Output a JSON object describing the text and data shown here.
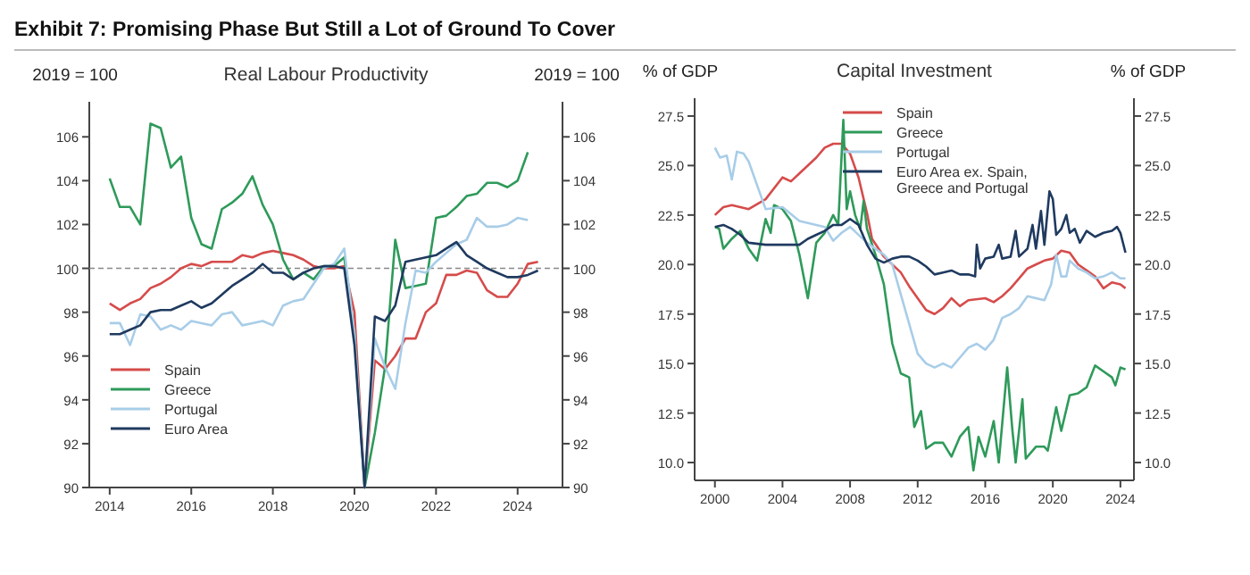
{
  "chart_data": [
    {
      "type": "line",
      "title": "Real Labour Productivity",
      "annotations": [
        "Exhibit 7: Promising Phase But Still a Lot of Ground To Cover"
      ],
      "ylabel": "2019 = 100",
      "y2label": "2019 = 100",
      "xlim": [
        2013.5,
        2025.1
      ],
      "xticks": [
        2014,
        2016,
        2018,
        2020,
        2022,
        2024
      ],
      "ylim": [
        90,
        107.6
      ],
      "yticks": [
        90,
        92,
        94,
        96,
        98,
        100,
        102,
        104,
        106
      ],
      "y2lim": [
        90,
        107.6
      ],
      "y2ticks": [
        90,
        92,
        94,
        96,
        98,
        100,
        102,
        104,
        106
      ],
      "legend": "bottom left",
      "line_style": "solid",
      "ref_lines": [
        {
          "axis": "y",
          "value": 100,
          "color": "#888888",
          "line_style": "dashed"
        }
      ],
      "series": [
        {
          "name": "Spain",
          "color": "#d64b4b",
          "x": [
            2014,
            2014.25,
            2014.5,
            2014.75,
            2015,
            2015.25,
            2015.5,
            2015.75,
            2016,
            2016.25,
            2016.5,
            2016.75,
            2017,
            2017.25,
            2017.5,
            2017.75,
            2018,
            2018.25,
            2018.5,
            2018.75,
            2019,
            2019.25,
            2019.5,
            2019.75,
            2020,
            2020.25,
            2020.5,
            2020.75,
            2021,
            2021.25,
            2021.5,
            2021.75,
            2022,
            2022.25,
            2022.5,
            2022.75,
            2023,
            2023.25,
            2023.5,
            2023.75,
            2024,
            2024.25,
            2024.5
          ],
          "values": [
            98.4,
            98.1,
            98.4,
            98.6,
            99.1,
            99.3,
            99.6,
            100.0,
            100.2,
            100.1,
            100.3,
            100.3,
            100.3,
            100.6,
            100.5,
            100.7,
            100.8,
            100.7,
            100.6,
            100.4,
            100.1,
            100.0,
            100.0,
            100.1,
            98.0,
            90.0,
            95.8,
            95.4,
            96.0,
            96.8,
            96.8,
            98.0,
            98.4,
            99.7,
            99.7,
            99.9,
            99.8,
            99.0,
            98.7,
            98.7,
            99.3,
            100.2,
            100.3
          ]
        },
        {
          "name": "Greece",
          "color": "#2e9a5a",
          "x": [
            2014,
            2014.25,
            2014.5,
            2014.75,
            2015,
            2015.25,
            2015.5,
            2015.75,
            2016,
            2016.25,
            2016.5,
            2016.75,
            2017,
            2017.25,
            2017.5,
            2017.75,
            2018,
            2018.25,
            2018.5,
            2018.75,
            2019,
            2019.25,
            2019.5,
            2019.75,
            2020,
            2020.25,
            2020.5,
            2020.75,
            2021,
            2021.25,
            2021.5,
            2021.75,
            2022,
            2022.25,
            2022.5,
            2022.75,
            2023,
            2023.25,
            2023.5,
            2023.75,
            2024,
            2024.25
          ],
          "values": [
            104.1,
            102.8,
            102.8,
            102.0,
            106.6,
            106.4,
            104.6,
            105.1,
            102.3,
            101.1,
            100.9,
            102.7,
            103.0,
            103.4,
            104.2,
            102.9,
            102.0,
            100.4,
            99.5,
            99.8,
            99.5,
            100.1,
            100.1,
            100.5,
            97.0,
            90.0,
            92.5,
            95.5,
            101.3,
            99.1,
            99.2,
            99.3,
            102.3,
            102.4,
            102.8,
            103.3,
            103.4,
            103.9,
            103.9,
            103.7,
            104.0,
            105.3
          ]
        },
        {
          "name": "Portugal",
          "color": "#a8cde8",
          "x": [
            2014,
            2014.25,
            2014.5,
            2014.75,
            2015,
            2015.25,
            2015.5,
            2015.75,
            2016,
            2016.25,
            2016.5,
            2016.75,
            2017,
            2017.25,
            2017.5,
            2017.75,
            2018,
            2018.25,
            2018.5,
            2018.75,
            2019,
            2019.25,
            2019.5,
            2019.75,
            2020,
            2020.25,
            2020.5,
            2020.75,
            2021,
            2021.25,
            2021.5,
            2021.75,
            2022,
            2022.25,
            2022.5,
            2022.75,
            2023,
            2023.25,
            2023.5,
            2023.75,
            2024,
            2024.25
          ],
          "values": [
            97.5,
            97.5,
            96.5,
            97.9,
            97.8,
            97.2,
            97.4,
            97.2,
            97.6,
            97.5,
            97.4,
            97.9,
            98.0,
            97.4,
            97.5,
            97.6,
            97.4,
            98.3,
            98.5,
            98.6,
            99.3,
            100.0,
            100.2,
            100.9,
            97.0,
            90.0,
            96.8,
            95.5,
            94.5,
            97.5,
            99.9,
            99.8,
            100.3,
            100.7,
            101.1,
            101.3,
            102.3,
            101.9,
            101.9,
            102.0,
            102.3,
            102.2
          ]
        },
        {
          "name": "Euro Area",
          "color": "#1f3a5f",
          "x": [
            2014,
            2014.25,
            2014.5,
            2014.75,
            2015,
            2015.25,
            2015.5,
            2015.75,
            2016,
            2016.25,
            2016.5,
            2016.75,
            2017,
            2017.25,
            2017.5,
            2017.75,
            2018,
            2018.25,
            2018.5,
            2018.75,
            2019,
            2019.25,
            2019.5,
            2019.75,
            2020,
            2020.25,
            2020.5,
            2020.75,
            2021,
            2021.25,
            2021.5,
            2021.75,
            2022,
            2022.25,
            2022.5,
            2022.75,
            2023,
            2023.25,
            2023.5,
            2023.75,
            2024,
            2024.25,
            2024.5
          ],
          "values": [
            97.0,
            97.0,
            97.2,
            97.4,
            98.0,
            98.1,
            98.1,
            98.3,
            98.5,
            98.2,
            98.4,
            98.8,
            99.2,
            99.5,
            99.8,
            100.2,
            99.8,
            99.8,
            99.5,
            99.8,
            100.0,
            100.1,
            100.1,
            100.0,
            96.5,
            90.0,
            97.8,
            97.6,
            98.3,
            100.3,
            100.4,
            100.5,
            100.6,
            100.9,
            101.2,
            100.6,
            100.3,
            100.0,
            99.8,
            99.6,
            99.6,
            99.7,
            99.9
          ]
        }
      ]
    },
    {
      "type": "line",
      "title": "Capital Investment",
      "ylabel": "% of GDP",
      "y2label": "% of GDP",
      "xlim": [
        1998.8,
        2024.8
      ],
      "xticks": [
        2000,
        2004,
        2008,
        2012,
        2016,
        2020,
        2024
      ],
      "ylim": [
        9.1,
        28.4
      ],
      "yticks": [
        {
          "value": 10,
          "label": "10.0"
        },
        12.5,
        {
          "value": 15,
          "label": "15.0"
        },
        17.5,
        {
          "value": 20,
          "label": "20.0"
        },
        22.5,
        {
          "value": 25,
          "label": "25.0"
        },
        27.5
      ],
      "y2lim": [
        9.1,
        28.4
      ],
      "y2ticks": [
        {
          "value": 10,
          "label": "10.0"
        },
        12.5,
        {
          "value": 15,
          "label": "15.0"
        },
        17.5,
        {
          "value": 20,
          "label": "20.0"
        },
        22.5,
        {
          "value": 25,
          "label": "25.0"
        },
        27.5
      ],
      "legend": "top",
      "line_style": "solid",
      "series": [
        {
          "name": "Spain",
          "color": "#d64b4b",
          "x": [
            2000,
            2000.5,
            2001,
            2002,
            2003,
            2004,
            2004.5,
            2005,
            2006,
            2006.5,
            2007,
            2007.5,
            2008,
            2008.5,
            2009,
            2009.3,
            2010,
            2011,
            2011.5,
            2012,
            2012.5,
            2013,
            2013.5,
            2014,
            2014.5,
            2015,
            2016,
            2016.5,
            2017,
            2017.5,
            2018,
            2018.5,
            2019,
            2019.5,
            2020,
            2020.5,
            2021,
            2021.5,
            2022,
            2022.5,
            2023,
            2023.5,
            2024,
            2024.3
          ],
          "values": [
            22.5,
            22.9,
            23.0,
            22.8,
            23.3,
            24.4,
            24.2,
            24.6,
            25.4,
            25.9,
            26.1,
            26.1,
            25.6,
            24.4,
            22.6,
            21.3,
            20.4,
            19.6,
            18.9,
            18.3,
            17.7,
            17.5,
            17.8,
            18.3,
            17.9,
            18.2,
            18.3,
            18.1,
            18.4,
            18.8,
            19.3,
            19.8,
            20.0,
            20.2,
            20.3,
            20.7,
            20.6,
            20.0,
            19.7,
            19.4,
            18.8,
            19.1,
            19.0,
            18.8
          ]
        },
        {
          "name": "Greece",
          "color": "#2e9a5a",
          "x": [
            2000,
            2000.25,
            2000.5,
            2001,
            2001.5,
            2002,
            2002.5,
            2003,
            2003.3,
            2003.5,
            2004,
            2004.5,
            2005,
            2005.5,
            2006,
            2006.5,
            2007,
            2007.3,
            2007.6,
            2007.8,
            2008,
            2008.3,
            2008.6,
            2008.8,
            2009,
            2009.5,
            2010,
            2010.5,
            2011,
            2011.5,
            2011.8,
            2012.2,
            2012.5,
            2013,
            2013.5,
            2014,
            2014.5,
            2015,
            2015.3,
            2015.6,
            2016,
            2016.5,
            2016.8,
            2017.3,
            2017.6,
            2017.8,
            2018.2,
            2018.4,
            2019,
            2019.5,
            2019.7,
            2020.2,
            2020.5,
            2021,
            2021.5,
            2022,
            2022.5,
            2023,
            2023.5,
            2023.7,
            2024,
            2024.3
          ],
          "values": [
            21.9,
            21.8,
            20.8,
            21.3,
            21.7,
            20.8,
            20.2,
            22.3,
            21.6,
            23.0,
            22.8,
            22.2,
            20.5,
            18.3,
            21.1,
            21.6,
            22.5,
            22.0,
            27.3,
            22.8,
            23.7,
            22.5,
            21.8,
            23.2,
            21.8,
            20.5,
            19.0,
            16.0,
            14.5,
            14.3,
            11.8,
            12.6,
            10.7,
            11.0,
            11.0,
            10.3,
            11.3,
            11.8,
            9.6,
            11.3,
            10.3,
            12.1,
            10.0,
            14.8,
            11.7,
            10.0,
            13.2,
            10.2,
            10.8,
            10.8,
            10.6,
            12.8,
            11.6,
            13.4,
            13.5,
            13.8,
            14.9,
            14.6,
            14.3,
            13.9,
            14.8,
            14.7
          ]
        },
        {
          "name": "Portugal",
          "color": "#a8cde8",
          "x": [
            2000,
            2000.3,
            2000.7,
            2001,
            2001.3,
            2001.7,
            2002,
            2002.5,
            2003,
            2004,
            2005,
            2006,
            2006.5,
            2007,
            2007.5,
            2008,
            2009,
            2010,
            2010.5,
            2011,
            2011.5,
            2012,
            2012.5,
            2013,
            2013.5,
            2014,
            2014.5,
            2015,
            2015.5,
            2016,
            2016.5,
            2017,
            2017.5,
            2018,
            2018.5,
            2019,
            2019.5,
            2019.9,
            2020.2,
            2020.5,
            2020.8,
            2021,
            2021.5,
            2022,
            2022.5,
            2023,
            2023.5,
            2024,
            2024.3
          ],
          "values": [
            25.9,
            25.4,
            25.5,
            24.3,
            25.7,
            25.6,
            25.2,
            24.0,
            22.8,
            22.9,
            22.2,
            22.0,
            21.9,
            21.2,
            21.6,
            21.9,
            21.1,
            20.5,
            20.0,
            18.5,
            17.0,
            15.5,
            15.0,
            14.8,
            15.0,
            14.8,
            15.3,
            15.8,
            16.0,
            15.7,
            16.2,
            17.3,
            17.5,
            17.8,
            18.4,
            18.3,
            18.2,
            19.0,
            20.5,
            19.4,
            19.4,
            20.2,
            19.8,
            19.6,
            19.3,
            19.4,
            19.6,
            19.3,
            19.3
          ]
        },
        {
          "name": "Euro Area ex. Spain, Greece and Portugal",
          "color": "#1f3a5f",
          "x": [
            2000,
            2000.5,
            2001,
            2001.5,
            2002,
            2003,
            2004,
            2005,
            2005.5,
            2006,
            2006.5,
            2007,
            2007.5,
            2008,
            2008.5,
            2009,
            2009.5,
            2010,
            2010.5,
            2011,
            2011.5,
            2012,
            2012.5,
            2013,
            2013.5,
            2014,
            2014.5,
            2015,
            2015.4,
            2015.5,
            2015.7,
            2016,
            2016.5,
            2016.8,
            2017,
            2017.5,
            2017.8,
            2018,
            2018.5,
            2018.8,
            2019,
            2019.3,
            2019.5,
            2019.8,
            2020,
            2020.2,
            2020.5,
            2020.8,
            2021,
            2021.3,
            2021.6,
            2022,
            2022.5,
            2023,
            2023.5,
            2023.8,
            2024,
            2024.3
          ],
          "values": [
            21.9,
            22.0,
            21.8,
            21.5,
            21.1,
            21.0,
            21.0,
            21.0,
            21.3,
            21.5,
            21.7,
            22.0,
            22.0,
            22.3,
            22.0,
            21.0,
            20.3,
            20.1,
            20.3,
            20.4,
            20.4,
            20.2,
            19.9,
            19.5,
            19.6,
            19.7,
            19.5,
            19.5,
            19.4,
            21.0,
            19.8,
            20.3,
            20.4,
            21.0,
            20.3,
            20.4,
            21.7,
            20.4,
            20.8,
            22.0,
            20.8,
            22.7,
            21.0,
            23.7,
            23.3,
            21.5,
            21.8,
            22.5,
            21.6,
            21.8,
            21.1,
            21.7,
            21.4,
            21.6,
            21.7,
            21.9,
            21.6,
            20.6
          ]
        }
      ]
    }
  ]
}
